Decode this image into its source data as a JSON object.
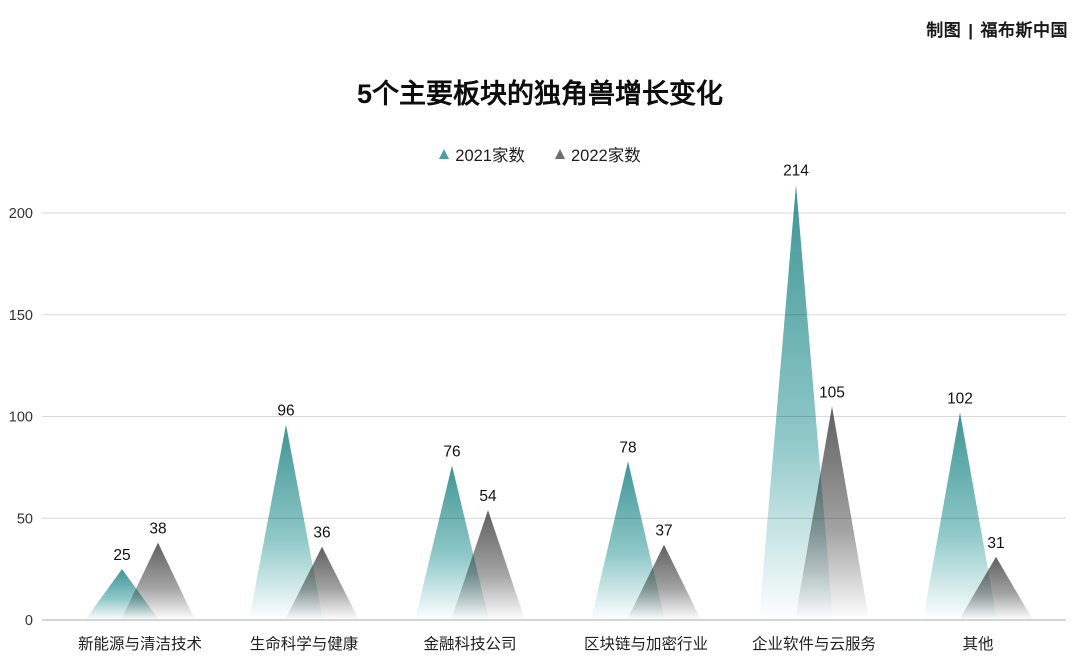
{
  "credit": {
    "label": "制图",
    "separator": "|",
    "brand": "福布斯中国"
  },
  "chart_data": {
    "type": "bar",
    "shape": "triangle-peak",
    "title": "5个主要板块的独角兽增长变化",
    "categories": [
      "新能源与清洁技术",
      "生命科学与健康",
      "金融科技公司",
      "区块链与加密行业",
      "企业软件与云服务",
      "其他"
    ],
    "series": [
      {
        "name": "2021家数",
        "color": "#4a9fa0",
        "gradient_top": "#3f9495",
        "gradient_mid": "#8fc8c8",
        "gradient_bottom": "#ffffff",
        "values": [
          25,
          96,
          76,
          78,
          214,
          102
        ]
      },
      {
        "name": "2022家数",
        "color": "#6e6e6e",
        "gradient_top": "#5f5f5f",
        "gradient_mid": "#a3a3a3",
        "gradient_bottom": "#ffffff",
        "values": [
          38,
          36,
          54,
          37,
          105,
          31
        ]
      }
    ],
    "xlabel": "",
    "ylabel": "",
    "ylim": [
      0,
      220
    ],
    "yticks": [
      0,
      50,
      100,
      150,
      200
    ],
    "grid": true,
    "legend_position": "top",
    "grid_color": "#d9d9d9",
    "baseline_color": "#ababab",
    "tick_label_color": "#333333",
    "value_label_color": "#111111",
    "category_label_color": "#222222"
  }
}
